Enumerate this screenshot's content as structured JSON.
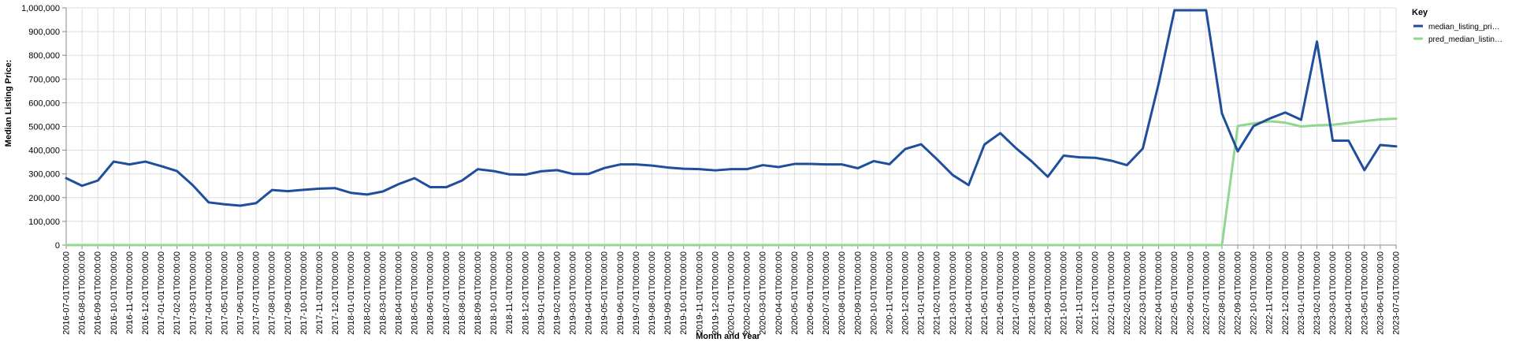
{
  "chart_data": {
    "type": "line",
    "xlabel": "Month and Year",
    "ylabel": "Median Listing Price:",
    "ylim": [
      0,
      1000000
    ],
    "y_ticks": [
      "0",
      "100,000",
      "200,000",
      "300,000",
      "400,000",
      "500,000",
      "600,000",
      "700,000",
      "800,000",
      "900,000",
      "1,000,000"
    ],
    "grid": true,
    "legend": {
      "title": "Key",
      "position": "top-right"
    },
    "x": [
      "2016-07-01T00:00:00",
      "2016-08-01T00:00:00",
      "2016-09-01T00:00:00",
      "2016-10-01T00:00:00",
      "2016-11-01T00:00:00",
      "2016-12-01T00:00:00",
      "2017-01-01T00:00:00",
      "2017-02-01T00:00:00",
      "2017-03-01T00:00:00",
      "2017-04-01T00:00:00",
      "2017-05-01T00:00:00",
      "2017-06-01T00:00:00",
      "2017-07-01T00:00:00",
      "2017-08-01T00:00:00",
      "2017-09-01T00:00:00",
      "2017-10-01T00:00:00",
      "2017-11-01T00:00:00",
      "2017-12-01T00:00:00",
      "2018-01-01T00:00:00",
      "2018-02-01T00:00:00",
      "2018-03-01T00:00:00",
      "2018-04-01T00:00:00",
      "2018-05-01T00:00:00",
      "2018-06-01T00:00:00",
      "2018-07-01T00:00:00",
      "2018-08-01T00:00:00",
      "2018-09-01T00:00:00",
      "2018-10-01T00:00:00",
      "2018-11-01T00:00:00",
      "2018-12-01T00:00:00",
      "2019-01-01T00:00:00",
      "2019-02-01T00:00:00",
      "2019-03-01T00:00:00",
      "2019-04-01T00:00:00",
      "2019-05-01T00:00:00",
      "2019-06-01T00:00:00",
      "2019-07-01T00:00:00",
      "2019-08-01T00:00:00",
      "2019-09-01T00:00:00",
      "2019-10-01T00:00:00",
      "2019-11-01T00:00:00",
      "2019-12-01T00:00:00",
      "2020-01-01T00:00:00",
      "2020-02-01T00:00:00",
      "2020-03-01T00:00:00",
      "2020-04-01T00:00:00",
      "2020-05-01T00:00:00",
      "2020-06-01T00:00:00",
      "2020-07-01T00:00:00",
      "2020-08-01T00:00:00",
      "2020-09-01T00:00:00",
      "2020-10-01T00:00:00",
      "2020-11-01T00:00:00",
      "2020-12-01T00:00:00",
      "2021-01-01T00:00:00",
      "2021-02-01T00:00:00",
      "2021-03-01T00:00:00",
      "2021-04-01T00:00:00",
      "2021-05-01T00:00:00",
      "2021-06-01T00:00:00",
      "2021-07-01T00:00:00",
      "2021-08-01T00:00:00",
      "2021-09-01T00:00:00",
      "2021-10-01T00:00:00",
      "2021-11-01T00:00:00",
      "2021-12-01T00:00:00",
      "2022-01-01T00:00:00",
      "2022-02-01T00:00:00",
      "2022-03-01T00:00:00",
      "2022-04-01T00:00:00",
      "2022-05-01T00:00:00",
      "2022-06-01T00:00:00",
      "2022-07-01T00:00:00",
      "2022-08-01T00:00:00",
      "2022-09-01T00:00:00",
      "2022-10-01T00:00:00",
      "2022-11-01T00:00:00",
      "2022-12-01T00:00:00",
      "2023-01-01T00:00:00",
      "2023-02-01T00:00:00",
      "2023-03-01T00:00:00",
      "2023-04-01T00:00:00",
      "2023-05-01T00:00:00",
      "2023-06-01T00:00:00",
      "2023-07-01T00:00:00"
    ],
    "series": [
      {
        "name": "median_listing_pri…",
        "color": "#1f4e9c",
        "values": [
          282000,
          250000,
          272000,
          352000,
          340000,
          352000,
          333000,
          312000,
          252000,
          180000,
          172000,
          166000,
          177000,
          232000,
          227000,
          233000,
          238000,
          240000,
          220000,
          213000,
          226000,
          257000,
          282000,
          244000,
          244000,
          272000,
          320000,
          312000,
          298000,
          297000,
          311000,
          316000,
          300000,
          300000,
          325000,
          340000,
          340000,
          335000,
          327000,
          322000,
          320000,
          315000,
          320000,
          320000,
          337000,
          329000,
          342000,
          342000,
          340000,
          340000,
          324000,
          354000,
          341000,
          405000,
          425000,
          362000,
          295000,
          253000,
          424000,
          472000,
          408000,
          352000,
          288000,
          377000,
          370000,
          368000,
          356000,
          337000,
          407000,
          680000,
          990000,
          990000,
          990000,
          555000,
          395000,
          502000,
          533000,
          559000,
          528000,
          858000,
          440000,
          440000,
          316000,
          422000,
          416000
        ]
      },
      {
        "name": "pred_median_listin…",
        "color": "#90d890",
        "values": [
          0,
          0,
          0,
          0,
          0,
          0,
          0,
          0,
          0,
          0,
          0,
          0,
          0,
          0,
          0,
          0,
          0,
          0,
          0,
          0,
          0,
          0,
          0,
          0,
          0,
          0,
          0,
          0,
          0,
          0,
          0,
          0,
          0,
          0,
          0,
          0,
          0,
          0,
          0,
          0,
          0,
          0,
          0,
          0,
          0,
          0,
          0,
          0,
          0,
          0,
          0,
          0,
          0,
          0,
          0,
          0,
          0,
          0,
          0,
          0,
          0,
          0,
          0,
          0,
          0,
          0,
          0,
          0,
          0,
          0,
          0,
          0,
          0,
          0,
          502000,
          513000,
          522000,
          516000,
          500000,
          505000,
          507000,
          515000,
          523000,
          530000,
          533000
        ]
      }
    ]
  }
}
